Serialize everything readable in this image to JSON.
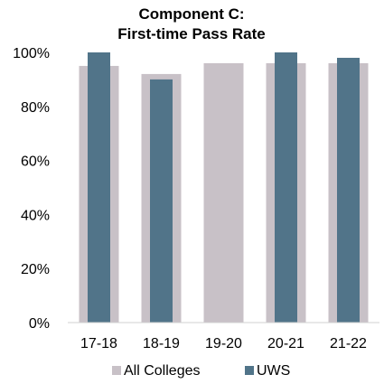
{
  "chart_data": {
    "type": "bar",
    "title": [
      "Component C:",
      "First-time Pass Rate"
    ],
    "categories": [
      "17-18",
      "18-19",
      "19-20",
      "20-21",
      "21-22"
    ],
    "series": [
      {
        "name": "All Colleges",
        "values": [
          95,
          92,
          96,
          96,
          96
        ],
        "color": "#c8c1c7"
      },
      {
        "name": "UWS",
        "values": [
          100,
          90,
          null,
          100,
          98
        ],
        "color": "#517489"
      }
    ],
    "yticks": [
      "0%",
      "20%",
      "40%",
      "60%",
      "80%",
      "100%"
    ],
    "ylim": [
      0,
      100
    ],
    "grid": false,
    "legend_position": "bottom"
  }
}
